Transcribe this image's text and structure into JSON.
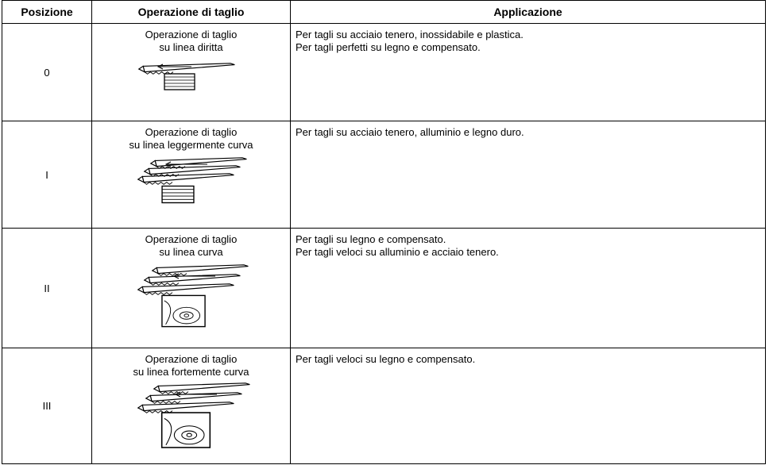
{
  "table": {
    "header": [
      "Posizione",
      "Operazione di taglio",
      "Applicazione"
    ],
    "rows": [
      {
        "position": "0",
        "operation": [
          "Operazione di taglio",
          "su linea diritta"
        ],
        "application": [
          "Per tagli su acciaio tenero, inossidabile e plastica.",
          "Per tagli perfetti su legno e compensato."
        ]
      },
      {
        "position": "I",
        "operation": [
          "Operazione di taglio",
          "su linea leggermente curva"
        ],
        "application": [
          "Per tagli su acciaio tenero, alluminio e legno duro."
        ]
      },
      {
        "position": "II",
        "operation": [
          "Operazione di taglio",
          "su linea curva"
        ],
        "application": [
          "Per tagli su legno e compensato.",
          "Per tagli veloci su alluminio e acciaio tenero."
        ]
      },
      {
        "position": "III",
        "operation": [
          "Operazione di taglio",
          "su linea fortemente curva"
        ],
        "application": [
          "Per tagli veloci su legno e compensato."
        ]
      }
    ]
  }
}
